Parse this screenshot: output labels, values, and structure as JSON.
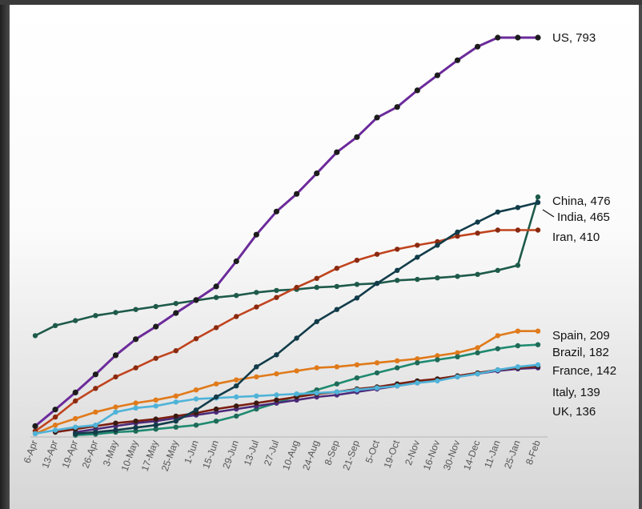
{
  "chart_data": {
    "type": "line",
    "title": "",
    "xlabel": "",
    "ylabel": "",
    "ylim": [
      0,
      820
    ],
    "grid": false,
    "categories": [
      "6-Apr",
      "13-Apr",
      "19-Apr",
      "26-Apr",
      "3-May",
      "10-May",
      "17-May",
      "25-May",
      "1-Jun",
      "15-Jun",
      "29-Jun",
      "13-Jul",
      "27-Jul",
      "10-Aug",
      "24-Aug",
      "8-Sep",
      "21-Sep",
      "5-Oct",
      "19-Oct",
      "2-Nov",
      "16-Nov",
      "30-Nov",
      "14-Dec",
      "11-Jan",
      "25-Jan",
      "8-Feb"
    ],
    "series": [
      {
        "name": "US",
        "label": "US, 793",
        "color": "#6b2a9a",
        "marker": "#1c1c1c",
        "points": [
          [
            0,
            20
          ],
          [
            1,
            53
          ],
          [
            2,
            87
          ],
          [
            3,
            123
          ],
          [
            4,
            161
          ],
          [
            5,
            193
          ],
          [
            6,
            218
          ],
          [
            7,
            245
          ],
          [
            8,
            271
          ],
          [
            9,
            298
          ],
          [
            10,
            348
          ],
          [
            11,
            401
          ],
          [
            12,
            447
          ],
          [
            13,
            482
          ],
          [
            14,
            523
          ],
          [
            15,
            565
          ],
          [
            16,
            595
          ],
          [
            17,
            634
          ],
          [
            18,
            655
          ],
          [
            19,
            688
          ],
          [
            20,
            718
          ],
          [
            21,
            748
          ],
          [
            22,
            775
          ],
          [
            23,
            793
          ]
        ],
        "start_cat": 0,
        "spacing": 1.0
      },
      {
        "name": "China",
        "label": "China, 476",
        "color": "#1e5a4a",
        "marker": "#1e5a4a",
        "points": [],
        "start_cat": 0
      },
      {
        "name": "India",
        "label": "India, 465",
        "color": "#123c4a",
        "marker": "#123c4a",
        "points": [],
        "start_cat": 2
      },
      {
        "name": "Iran",
        "label": "Iran, 410",
        "color": "#c0441e",
        "marker": "#8a2a10",
        "points": [],
        "start_cat": 0
      },
      {
        "name": "Spain",
        "label": "Spain, 209",
        "color": "#e07a1a",
        "marker": "#e07a1a",
        "points": [],
        "start_cat": 0
      },
      {
        "name": "Brazil",
        "label": "Brazil, 182",
        "color": "#1f8a70",
        "marker": "#1f6a58",
        "points": [],
        "start_cat": 2
      },
      {
        "name": "France",
        "label": "France, 142",
        "color": "#4fb3d8",
        "marker": "#4fb3d8",
        "points": [],
        "start_cat": 0
      },
      {
        "name": "Italy",
        "label": "Italy, 139",
        "color": "#7a1e10",
        "marker": "#3a1a10",
        "points": [],
        "start_cat": 1
      },
      {
        "name": "UK",
        "label": "UK, 136",
        "color": "#4b2a7a",
        "marker": "#4b2a7a",
        "points": [],
        "start_cat": 2
      }
    ],
    "values": {
      "US": [
        20,
        53,
        87,
        123,
        161,
        193,
        218,
        245,
        271,
        298,
        348,
        401,
        447,
        482,
        523,
        565,
        595,
        634,
        655,
        688,
        718,
        748,
        775,
        793,
        793,
        793
      ],
      "China": [
        200,
        220,
        230,
        240,
        246,
        252,
        258,
        264,
        270,
        276,
        280,
        286,
        290,
        292,
        296,
        298,
        302,
        304,
        310,
        312,
        315,
        318,
        322,
        330,
        340,
        476
      ],
      "India": [
        null,
        null,
        5,
        8,
        12,
        17,
        22,
        30,
        52,
        78,
        100,
        138,
        162,
        195,
        228,
        252,
        275,
        304,
        330,
        356,
        380,
        406,
        426,
        446,
        455,
        465
      ],
      "Iran": [
        10,
        38,
        70,
        95,
        118,
        136,
        155,
        170,
        194,
        216,
        238,
        257,
        276,
        296,
        314,
        334,
        350,
        362,
        372,
        380,
        387,
        398,
        404,
        410,
        410,
        410
      ],
      "Spain": [
        5,
        22,
        35,
        48,
        58,
        66,
        72,
        80,
        92,
        104,
        112,
        118,
        124,
        130,
        136,
        138,
        142,
        146,
        150,
        154,
        160,
        166,
        176,
        200,
        209,
        209
      ],
      "Brazil": [
        null,
        null,
        2,
        4,
        8,
        10,
        14,
        18,
        22,
        30,
        40,
        54,
        66,
        80,
        92,
        104,
        116,
        126,
        136,
        146,
        152,
        158,
        166,
        174,
        180,
        182
      ],
      "France": [
        5,
        12,
        18,
        22,
        48,
        56,
        60,
        68,
        74,
        76,
        78,
        80,
        82,
        84,
        86,
        88,
        92,
        96,
        100,
        106,
        110,
        118,
        124,
        132,
        138,
        142
      ],
      "Italy": [
        null,
        8,
        14,
        20,
        26,
        30,
        34,
        40,
        46,
        54,
        60,
        66,
        72,
        78,
        84,
        88,
        94,
        98,
        104,
        110,
        114,
        120,
        126,
        132,
        136,
        139
      ],
      "UK": [
        null,
        null,
        8,
        14,
        20,
        26,
        30,
        36,
        42,
        48,
        54,
        60,
        66,
        72,
        78,
        82,
        88,
        94,
        100,
        106,
        112,
        118,
        124,
        130,
        134,
        136
      ]
    }
  }
}
